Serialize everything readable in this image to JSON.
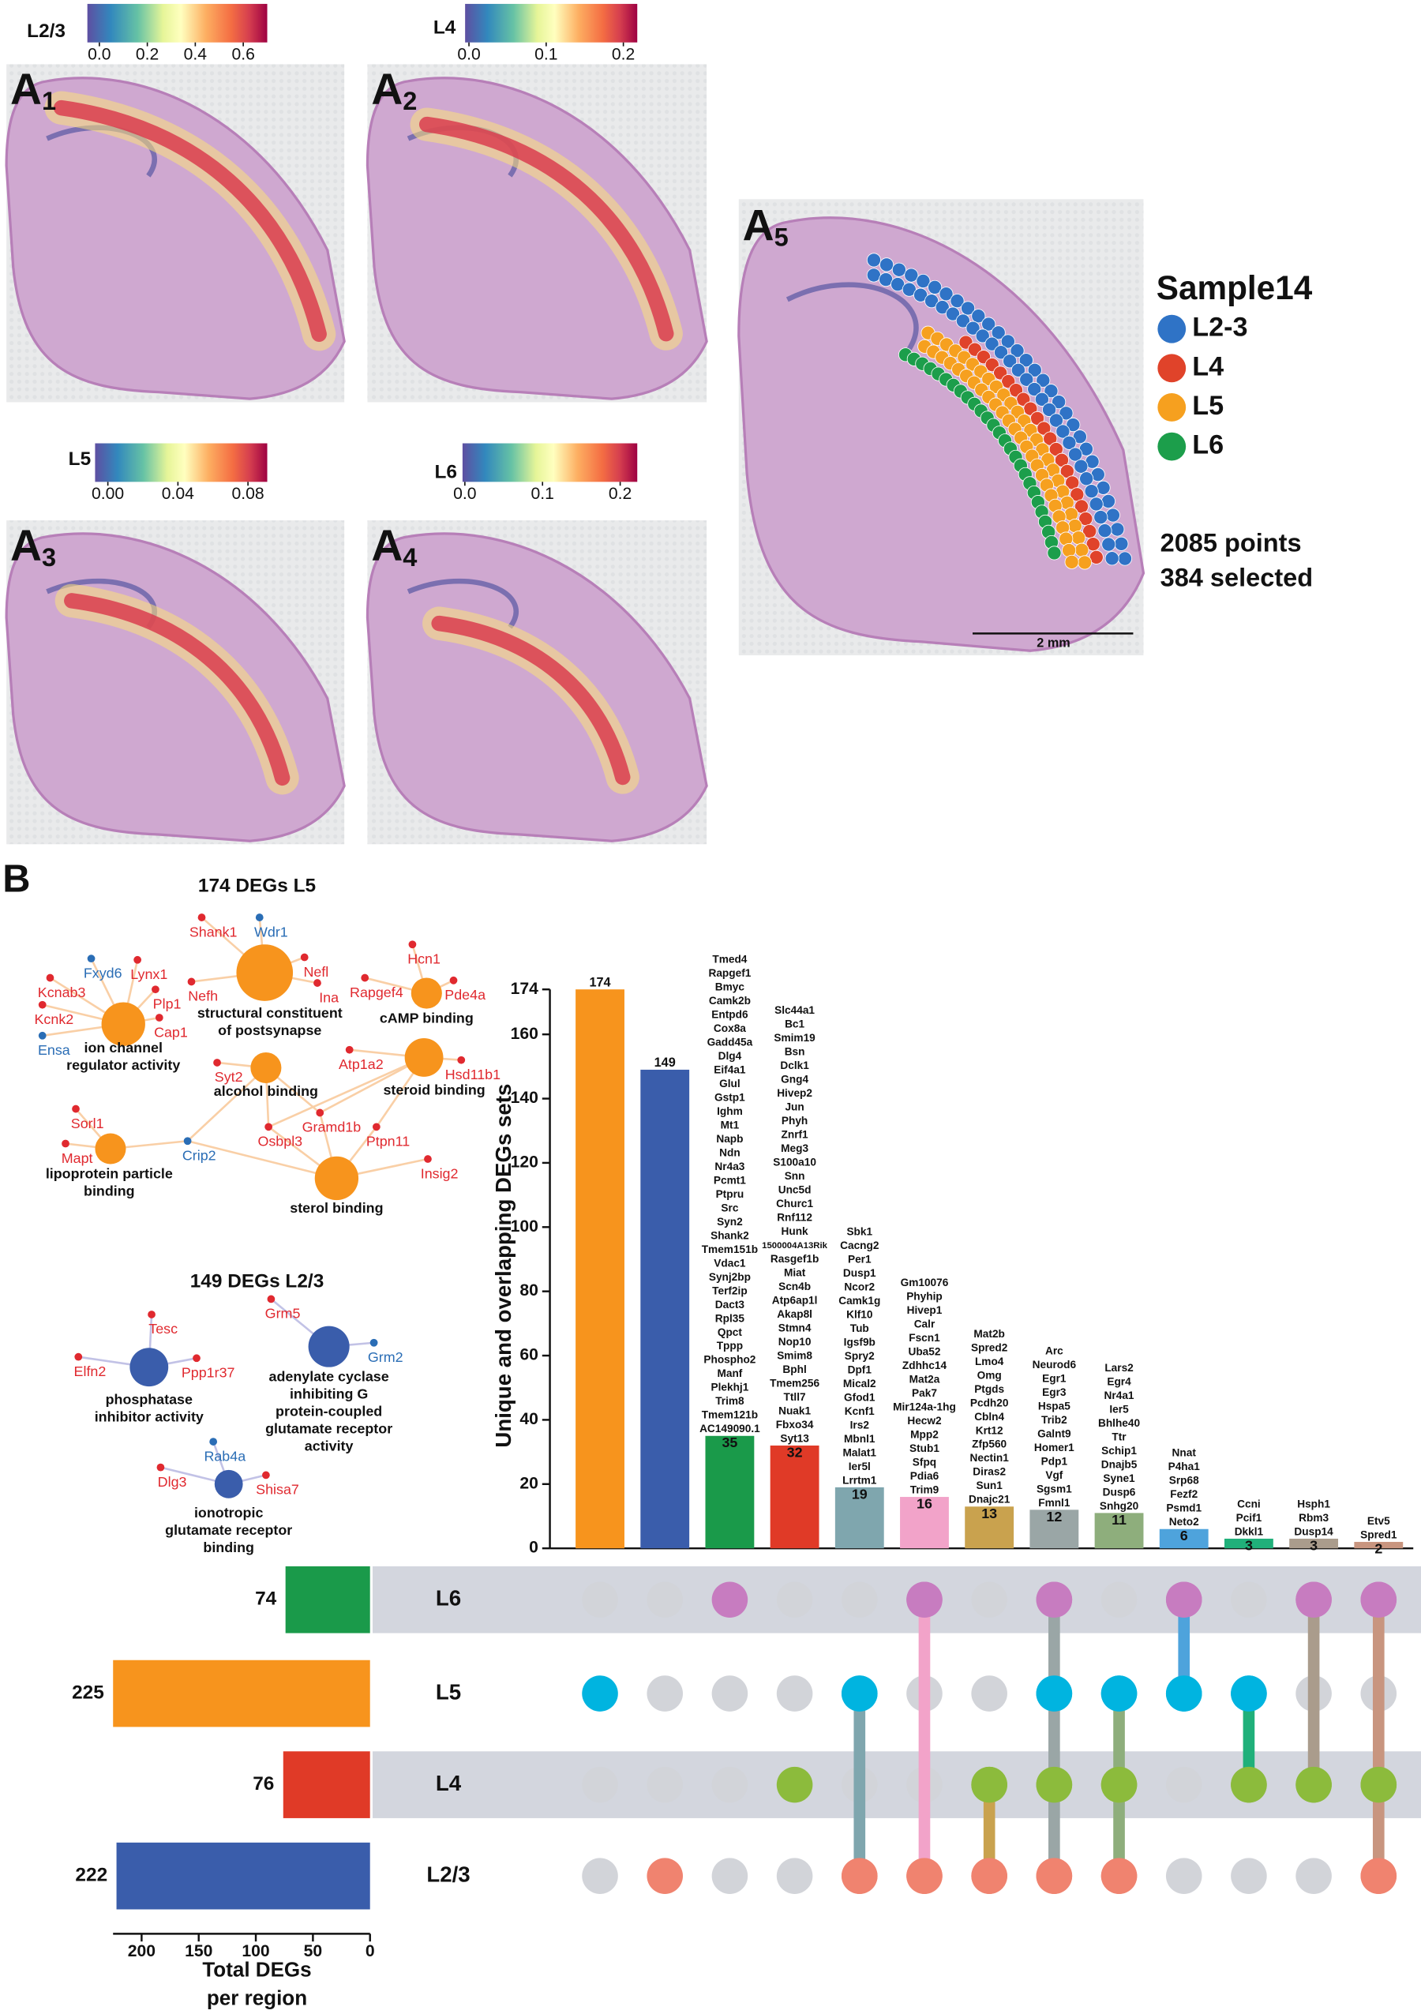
{
  "panel_a": {
    "maps": [
      {
        "label": {
          "letter": "A",
          "sub": "1"
        },
        "colorbar": {
          "title": "L2/3",
          "lim": [
            -0.05,
            0.7
          ],
          "ticks": [
            {
              "value": 0,
              "label": "0.0"
            },
            0.2,
            0.4,
            0.6
          ]
        }
      },
      {
        "label": {
          "letter": "A",
          "sub": "2"
        },
        "colorbar": {
          "title": "L4",
          "lim": [
            -0.005,
            0.218
          ],
          "ticks": [
            {
              "value": 0,
              "label": "0.0"
            },
            0.1,
            0.2
          ]
        }
      },
      {
        "label": {
          "letter": "A",
          "sub": "3"
        },
        "colorbar": {
          "title": "L5",
          "lim": [
            -0.0073,
            0.091
          ],
          "ticks": [
            {
              "value": 0,
              "label": "0.00"
            },
            0.04,
            0.08
          ]
        }
      },
      {
        "label": {
          "letter": "A",
          "sub": "4"
        },
        "colorbar": {
          "title": "L6",
          "lim": [
            -0.003,
            0.222
          ],
          "ticks": [
            {
              "value": 0,
              "label": "0.0"
            },
            0.1,
            0.2
          ]
        }
      }
    ],
    "selection": {
      "label": {
        "letter": "A",
        "sub": "5"
      },
      "legend_title": "Sample14",
      "legend": [
        {
          "name": "L2-3",
          "color": "#2f73c6"
        },
        {
          "name": "L4",
          "color": "#e0432a"
        },
        {
          "name": "L5",
          "color": "#f6a01f"
        },
        {
          "name": "L6",
          "color": "#1c9e4b"
        }
      ],
      "points": "2085 points",
      "selected": "384 selected",
      "scale_bar": "2 mm"
    }
  },
  "panel_b": {
    "label": "B",
    "networks": [
      {
        "title": "174 DEGs L5",
        "term_color": "#f7941d",
        "edge_color": "#f9cfa6",
        "terms": [
          {
            "lines": [
              "ion channel",
              "regulator activity"
            ]
          },
          {
            "lines": [
              "structural constituent",
              "of postsynapse"
            ]
          },
          {
            "lines": [
              "cAMP binding"
            ]
          },
          {
            "lines": [
              "alcohol binding"
            ]
          },
          {
            "lines": [
              "steroid binding"
            ]
          },
          {
            "lines": [
              "lipoprotein particle",
              "binding"
            ]
          },
          {
            "lines": [
              "sterol binding"
            ]
          }
        ],
        "genes": [
          {
            "name": "Shank1",
            "color": "#e0292f"
          },
          {
            "name": "Wdr1",
            "color": "#2a6db5"
          },
          {
            "name": "Fxyd6",
            "color": "#2a6db5"
          },
          {
            "name": "Lynx1",
            "color": "#e0292f"
          },
          {
            "name": "Kcnab3",
            "color": "#e0292f"
          },
          {
            "name": "Plp1",
            "color": "#e0292f"
          },
          {
            "name": "Nefh",
            "color": "#e0292f"
          },
          {
            "name": "Nefl",
            "color": "#e0292f"
          },
          {
            "name": "Ina",
            "color": "#e0292f"
          },
          {
            "name": "Hcn1",
            "color": "#e0292f"
          },
          {
            "name": "Rapgef4",
            "color": "#e0292f"
          },
          {
            "name": "Pde4a",
            "color": "#e0292f"
          },
          {
            "name": "Kcnk2",
            "color": "#e0292f"
          },
          {
            "name": "Cap1",
            "color": "#e0292f"
          },
          {
            "name": "Ensa",
            "color": "#2a6db5"
          },
          {
            "name": "Syt2",
            "color": "#e0292f"
          },
          {
            "name": "Atp1a2",
            "color": "#e0292f"
          },
          {
            "name": "Hsd11b1",
            "color": "#e0292f"
          },
          {
            "name": "Gramd1b",
            "color": "#e0292f"
          },
          {
            "name": "Sorl1",
            "color": "#e0292f"
          },
          {
            "name": "Mapt",
            "color": "#e0292f"
          },
          {
            "name": "Crip2",
            "color": "#2a6db5"
          },
          {
            "name": "Osbpl3",
            "color": "#e0292f"
          },
          {
            "name": "Ptpn11",
            "color": "#e0292f"
          },
          {
            "name": "Insig2",
            "color": "#e0292f"
          }
        ]
      },
      {
        "title": "149 DEGs L2/3",
        "term_color": "#3a5dab",
        "edge_color": "#c2c2e6",
        "terms": [
          {
            "lines": [
              "phosphatase",
              "inhibitor activity"
            ]
          },
          {
            "lines": [
              "adenylate cyclase",
              "inhibiting G",
              "protein-coupled",
              "glutamate receptor",
              "activity"
            ]
          },
          {
            "lines": [
              "ionotropic",
              "glutamate receptor",
              "binding"
            ]
          }
        ],
        "genes": [
          {
            "name": "Tesc",
            "color": "#e0292f"
          },
          {
            "name": "Elfn2",
            "color": "#e0292f"
          },
          {
            "name": "Ppp1r37",
            "color": "#e0292f"
          },
          {
            "name": "Grm5",
            "color": "#e0292f"
          },
          {
            "name": "Grm2",
            "color": "#2a6db5"
          },
          {
            "name": "Rab4a",
            "color": "#2a6db5"
          },
          {
            "name": "Dlg3",
            "color": "#e0292f"
          },
          {
            "name": "Shisa7",
            "color": "#e0292f"
          }
        ]
      }
    ]
  },
  "chart_data": [
    {
      "type": "bar",
      "ylabel": "Unique and overlapping DEGs sets",
      "values": [
        174,
        149,
        35,
        32,
        19,
        16,
        13,
        12,
        11,
        6,
        3,
        3,
        2
      ],
      "colors": [
        "#f7941d",
        "#3a5dab",
        "#1a9a4a",
        "#e03a27",
        "#7fa6ae",
        "#f2a3c9",
        "#c9a24e",
        "#9aa6a6",
        "#8eae7c",
        "#4ea3dc",
        "#20b07a",
        "#aa9c8c",
        "#c8957f"
      ],
      "genes": [
        [],
        [],
        [
          "Tmed4",
          "Rapgef1",
          "Bmyc",
          "Camk2b",
          "Entpd6",
          "Cox8a",
          "Gadd45a",
          "Dlg4",
          "Eif4a1",
          "Glul",
          "Gstp1",
          "Ighm",
          "Mt1",
          "Napb",
          "Ndn",
          "Nr4a3",
          "Pcmt1",
          "Ptpru",
          "Src",
          "Syn2",
          "Shank2",
          "Tmem151b",
          "Vdac1",
          "Synj2bp",
          "Terf2ip",
          "Dact3",
          "Rpl35",
          "Qpct",
          "Tppp",
          "Phospho2",
          "Manf",
          "Plekhj1",
          "Trim8",
          "Tmem121b",
          "AC149090.1"
        ],
        [
          "Slc44a1",
          "Bc1",
          "Smim19",
          "Bsn",
          "Dclk1",
          "Gng4",
          "Hivep2",
          "Jun",
          "Phyh",
          "Znrf1",
          "Meg3",
          "S100a10",
          "Snn",
          "Unc5d",
          "Churc1",
          "Rnf112",
          "Hunk",
          "1500004A13Rik",
          "Rasgef1b",
          "Miat",
          "Scn4b",
          "Atp6ap1l",
          "Akap8l",
          "Stmn4",
          "Nop10",
          "Smim8",
          "Bphl",
          "Tmem256",
          "Ttll7",
          "Nuak1",
          "Fbxo34",
          "Syt13"
        ],
        [
          "Sbk1",
          "Cacng2",
          "Per1",
          "Dusp1",
          "Ncor2",
          "Camk1g",
          "Klf10",
          "Tub",
          "Igsf9b",
          "Spry2",
          "Dpf1",
          "Mical2",
          "Gfod1",
          "Kcnf1",
          "Irs2",
          "Mbnl1",
          "Malat1",
          "Ier5l",
          "Lrrtm1"
        ],
        [
          "Gm10076",
          "Phyhip",
          "Hivep1",
          "Calr",
          "Fscn1",
          "Uba52",
          "Zdhhc14",
          "Mat2a",
          "Pak7",
          "Mir124a-1hg",
          "Hecw2",
          "Mpp2",
          "Stub1",
          "Sfpq",
          "Pdia6",
          "Trim9"
        ],
        [
          "Mat2b",
          "Spred2",
          "Lmo4",
          "Omg",
          "Ptgds",
          "Pcdh20",
          "Cbln4",
          "Krt12",
          "Zfp560",
          "Nectin1",
          "Diras2",
          "Sun1",
          "Dnajc21"
        ],
        [
          "Arc",
          "Neurod6",
          "Egr1",
          "Egr3",
          "Hspa5",
          "Trib2",
          "Galnt9",
          "Homer1",
          "Pdp1",
          "Vgf",
          "Sgsm1",
          "Fmnl1"
        ],
        [
          "Lars2",
          "Egr4",
          "Nr4a1",
          "Ier5",
          "Bhlhe40",
          "Ttr",
          "Schip1",
          "Dnajb5",
          "Syne1",
          "Dusp6",
          "Snhg20"
        ],
        [
          "Nnat",
          "P4ha1",
          "Srp68",
          "Fezf2",
          "Psmd1",
          "Neto2"
        ],
        [
          "Ccni",
          "Pcif1",
          "Dkkl1"
        ],
        [
          "Hsph1",
          "Rbm3",
          "Dusp14"
        ],
        [
          "Etv5",
          "Spred1"
        ]
      ],
      "ylim": [
        0,
        174
      ],
      "yticks": [
        0,
        20,
        40,
        60,
        80,
        100,
        120,
        140,
        160,
        174
      ]
    },
    {
      "type": "barh",
      "x_inverted": true,
      "xlabel": [
        "Total DEGs",
        "per region"
      ],
      "categories": [
        "L6",
        "L5",
        "L4",
        "L2/3"
      ],
      "values": [
        74,
        225,
        76,
        222
      ],
      "colors": [
        "#1a9a4a",
        "#f7941d",
        "#e03a27",
        "#3a5dab"
      ],
      "dot_colors": [
        "#c77cc0",
        "#00b4e0",
        "#8cbb3c",
        "#f0836f"
      ],
      "inactive_color": "#d2d4d9",
      "band_color": "#d3d6de",
      "membership": [
        [
          0,
          0,
          1,
          0,
          0,
          1,
          0,
          1,
          0,
          1,
          0,
          1,
          1
        ],
        [
          1,
          0,
          0,
          0,
          1,
          0,
          0,
          1,
          1,
          1,
          1,
          0,
          0
        ],
        [
          0,
          0,
          0,
          1,
          0,
          0,
          1,
          1,
          1,
          0,
          1,
          1,
          1
        ],
        [
          0,
          1,
          0,
          0,
          1,
          1,
          1,
          1,
          1,
          0,
          0,
          0,
          1
        ]
      ],
      "xlim": [
        0,
        225
      ],
      "xticks": [
        0,
        50,
        100,
        150,
        200
      ]
    }
  ]
}
